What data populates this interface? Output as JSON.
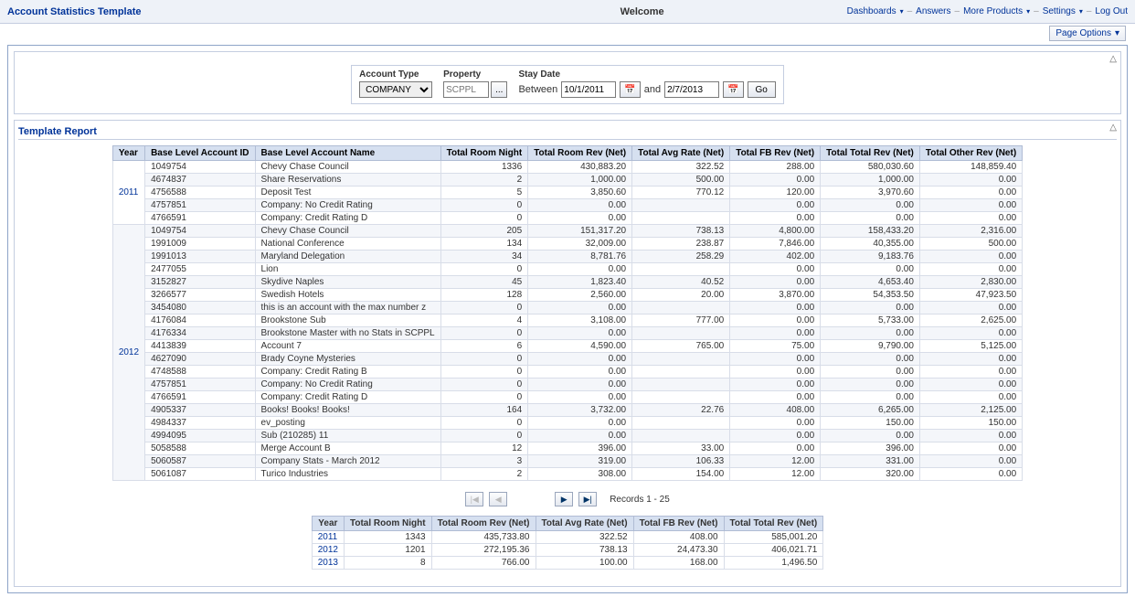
{
  "topbar": {
    "title": "Account Statistics Template",
    "welcome": "Welcome",
    "nav": {
      "dashboards": "Dashboards",
      "answers": "Answers",
      "more_products": "More Products",
      "settings": "Settings",
      "logout": "Log Out"
    },
    "page_options": "Page Options"
  },
  "filters": {
    "account_type_label": "Account Type",
    "account_type_value": "COMPANY",
    "property_label": "Property",
    "property_placeholder": "SCPPL",
    "stay_date_label": "Stay Date",
    "between_label": "Between",
    "and_label": "and",
    "date_from": "10/1/2011",
    "date_to": "2/7/2013",
    "ellipsis": "...",
    "go": "Go"
  },
  "report": {
    "section_title": "Template Report",
    "columns": [
      "Year",
      "Base Level Account ID",
      "Base Level Account Name",
      "Total Room Night",
      "Total Room Rev (Net)",
      "Total Avg Rate (Net)",
      "Total FB Rev (Net)",
      "Total Total Rev (Net)",
      "Total Other Rev (Net)"
    ],
    "groups": [
      {
        "year": "2011",
        "rows": [
          {
            "id": "1049754",
            "name": "Chevy Chase Council",
            "rn": "1336",
            "rr": "430,883.20",
            "ar": "322.52",
            "fb": "288.00",
            "tr": "580,030.60",
            "or": "148,859.40"
          },
          {
            "id": "4674837",
            "name": "Share Reservations",
            "rn": "2",
            "rr": "1,000.00",
            "ar": "500.00",
            "fb": "0.00",
            "tr": "1,000.00",
            "or": "0.00"
          },
          {
            "id": "4756588",
            "name": "Deposit Test",
            "rn": "5",
            "rr": "3,850.60",
            "ar": "770.12",
            "fb": "120.00",
            "tr": "3,970.60",
            "or": "0.00"
          },
          {
            "id": "4757851",
            "name": "Company: No Credit Rating",
            "rn": "0",
            "rr": "0.00",
            "ar": "",
            "fb": "0.00",
            "tr": "0.00",
            "or": "0.00"
          },
          {
            "id": "4766591",
            "name": "Company: Credit Rating D",
            "rn": "0",
            "rr": "0.00",
            "ar": "",
            "fb": "0.00",
            "tr": "0.00",
            "or": "0.00"
          }
        ]
      },
      {
        "year": "2012",
        "rows": [
          {
            "id": "1049754",
            "name": "Chevy Chase Council",
            "rn": "205",
            "rr": "151,317.20",
            "ar": "738.13",
            "fb": "4,800.00",
            "tr": "158,433.20",
            "or": "2,316.00"
          },
          {
            "id": "1991009",
            "name": "National Conference",
            "rn": "134",
            "rr": "32,009.00",
            "ar": "238.87",
            "fb": "7,846.00",
            "tr": "40,355.00",
            "or": "500.00"
          },
          {
            "id": "1991013",
            "name": "Maryland Delegation",
            "rn": "34",
            "rr": "8,781.76",
            "ar": "258.29",
            "fb": "402.00",
            "tr": "9,183.76",
            "or": "0.00"
          },
          {
            "id": "2477055",
            "name": "Lion",
            "rn": "0",
            "rr": "0.00",
            "ar": "",
            "fb": "0.00",
            "tr": "0.00",
            "or": "0.00"
          },
          {
            "id": "3152827",
            "name": "Skydive Naples",
            "rn": "45",
            "rr": "1,823.40",
            "ar": "40.52",
            "fb": "0.00",
            "tr": "4,653.40",
            "or": "2,830.00"
          },
          {
            "id": "3266577",
            "name": "Swedish Hotels",
            "rn": "128",
            "rr": "2,560.00",
            "ar": "20.00",
            "fb": "3,870.00",
            "tr": "54,353.50",
            "or": "47,923.50"
          },
          {
            "id": "3454080",
            "name": "this is an account with the max number z",
            "rn": "0",
            "rr": "0.00",
            "ar": "",
            "fb": "0.00",
            "tr": "0.00",
            "or": "0.00"
          },
          {
            "id": "4176084",
            "name": "Brookstone Sub",
            "rn": "4",
            "rr": "3,108.00",
            "ar": "777.00",
            "fb": "0.00",
            "tr": "5,733.00",
            "or": "2,625.00"
          },
          {
            "id": "4176334",
            "name": "Brookstone Master with no Stats in SCPPL",
            "rn": "0",
            "rr": "0.00",
            "ar": "",
            "fb": "0.00",
            "tr": "0.00",
            "or": "0.00"
          },
          {
            "id": "4413839",
            "name": "Account 7",
            "rn": "6",
            "rr": "4,590.00",
            "ar": "765.00",
            "fb": "75.00",
            "tr": "9,790.00",
            "or": "5,125.00"
          },
          {
            "id": "4627090",
            "name": "Brady Coyne Mysteries",
            "rn": "0",
            "rr": "0.00",
            "ar": "",
            "fb": "0.00",
            "tr": "0.00",
            "or": "0.00"
          },
          {
            "id": "4748588",
            "name": "Company: Credit Rating B",
            "rn": "0",
            "rr": "0.00",
            "ar": "",
            "fb": "0.00",
            "tr": "0.00",
            "or": "0.00"
          },
          {
            "id": "4757851",
            "name": "Company: No Credit Rating",
            "rn": "0",
            "rr": "0.00",
            "ar": "",
            "fb": "0.00",
            "tr": "0.00",
            "or": "0.00"
          },
          {
            "id": "4766591",
            "name": "Company: Credit Rating D",
            "rn": "0",
            "rr": "0.00",
            "ar": "",
            "fb": "0.00",
            "tr": "0.00",
            "or": "0.00"
          },
          {
            "id": "4905337",
            "name": "Books! Books! Books!",
            "rn": "164",
            "rr": "3,732.00",
            "ar": "22.76",
            "fb": "408.00",
            "tr": "6,265.00",
            "or": "2,125.00"
          },
          {
            "id": "4984337",
            "name": "ev_posting",
            "rn": "0",
            "rr": "0.00",
            "ar": "",
            "fb": "0.00",
            "tr": "150.00",
            "or": "150.00"
          },
          {
            "id": "4994095",
            "name": "Sub (210285) 11",
            "rn": "0",
            "rr": "0.00",
            "ar": "",
            "fb": "0.00",
            "tr": "0.00",
            "or": "0.00"
          },
          {
            "id": "5058588",
            "name": "Merge Account B",
            "rn": "12",
            "rr": "396.00",
            "ar": "33.00",
            "fb": "0.00",
            "tr": "396.00",
            "or": "0.00"
          },
          {
            "id": "5060587",
            "name": "Company Stats - March 2012",
            "rn": "3",
            "rr": "319.00",
            "ar": "106.33",
            "fb": "12.00",
            "tr": "331.00",
            "or": "0.00"
          },
          {
            "id": "5061087",
            "name": "Turico Industries",
            "rn": "2",
            "rr": "308.00",
            "ar": "154.00",
            "fb": "12.00",
            "tr": "320.00",
            "or": "0.00"
          }
        ]
      }
    ],
    "pager_label": "Records 1 - 25"
  },
  "summary": {
    "columns": [
      "Year",
      "Total Room Night",
      "Total Room Rev (Net)",
      "Total Avg Rate (Net)",
      "Total FB Rev (Net)",
      "Total Total Rev (Net)"
    ],
    "rows": [
      {
        "year": "2011",
        "rn": "1343",
        "rr": "435,733.80",
        "ar": "322.52",
        "fb": "408.00",
        "tr": "585,001.20"
      },
      {
        "year": "2012",
        "rn": "1201",
        "rr": "272,195.36",
        "ar": "738.13",
        "fb": "24,473.30",
        "tr": "406,021.71"
      },
      {
        "year": "2013",
        "rn": "8",
        "rr": "766.00",
        "ar": "100.00",
        "fb": "168.00",
        "tr": "1,496.50"
      }
    ]
  },
  "colors": {
    "header_bg": "#d6e0f0",
    "border": "#b0bcd4",
    "link": "#003399",
    "topbar_bg": "#eef2f8"
  }
}
